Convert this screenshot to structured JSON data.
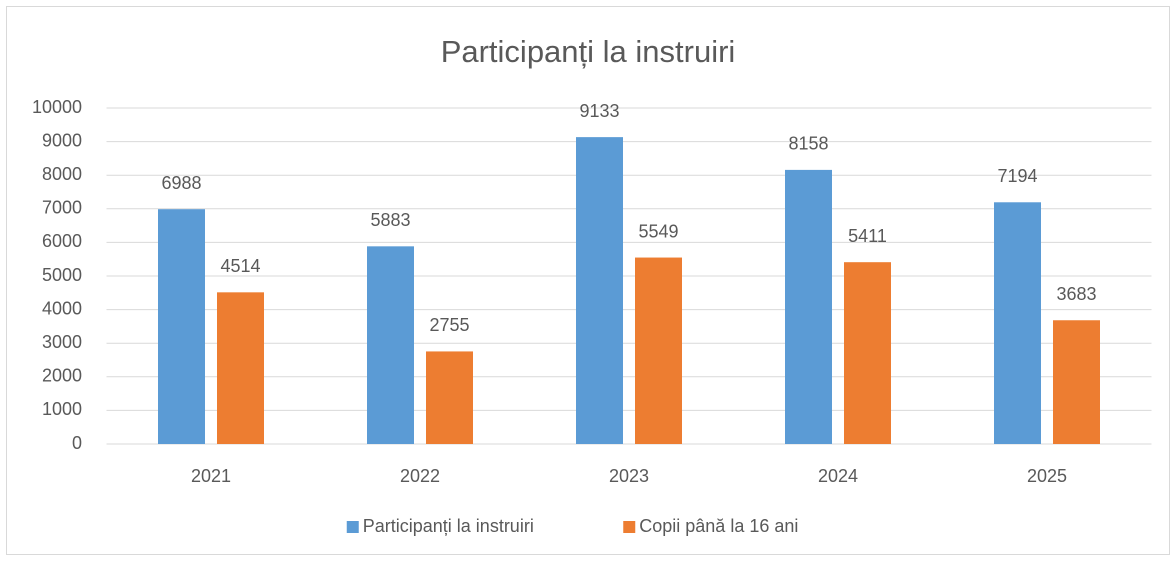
{
  "chart_data": {
    "type": "bar",
    "title": "Participanți la instruiri",
    "categories": [
      "2021",
      "2022",
      "2023",
      "2024",
      "2025"
    ],
    "series": [
      {
        "name": "Participanți la instruiri",
        "color": "#5b9bd5",
        "values": [
          6988,
          5883,
          9133,
          8158,
          7194
        ]
      },
      {
        "name": "Copii până la 16 ani",
        "color": "#ed7d31",
        "values": [
          4514,
          2755,
          5549,
          5411,
          3683
        ]
      }
    ],
    "ylim": [
      0,
      10000
    ],
    "yticks": [
      0,
      1000,
      2000,
      3000,
      4000,
      5000,
      6000,
      7000,
      8000,
      9000,
      10000
    ],
    "grid": true,
    "legend": "bottom"
  }
}
